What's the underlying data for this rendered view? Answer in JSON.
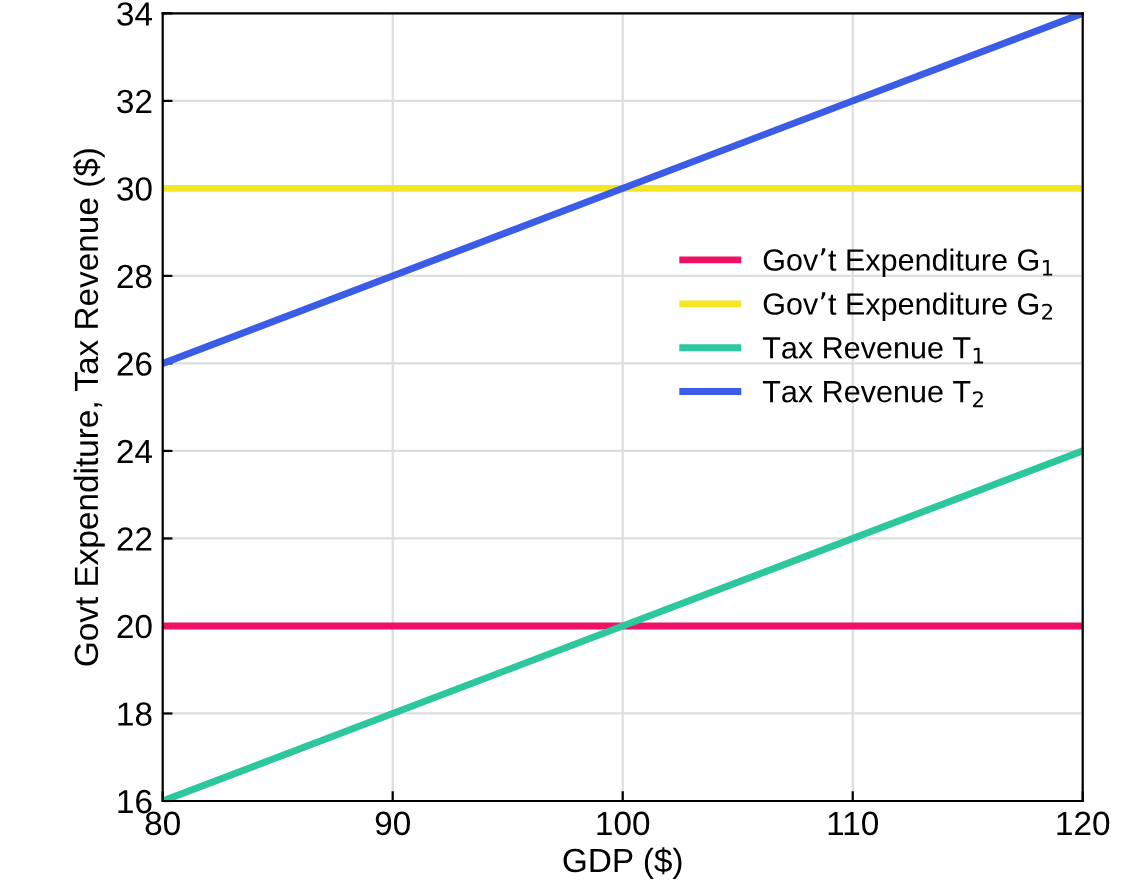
{
  "chart_data": {
    "type": "line",
    "xlabel": "GDP ($)",
    "ylabel": "Govt Expenditure, Tax Revenue ($)",
    "x": [
      80,
      120
    ],
    "xlim": [
      80,
      120
    ],
    "xticks": [
      80,
      90,
      100,
      110,
      120
    ],
    "ylim": [
      16,
      34
    ],
    "yticks": [
      16,
      18,
      20,
      22,
      24,
      26,
      28,
      30,
      32,
      34
    ],
    "grid": true,
    "legend": "right",
    "series": [
      {
        "name": "Gov’t Expenditure G$_{1}$",
        "color": "#ee1166",
        "values": [
          20,
          20
        ]
      },
      {
        "name": "Gov’t Expenditure G$_{2}$",
        "color": "#f5e624",
        "values": [
          30,
          30
        ]
      },
      {
        "name": "Tax Revenue T$_{1}$",
        "color": "#2cc79d",
        "values": [
          16,
          24
        ]
      },
      {
        "name": "Tax Revenue T$_{2}$",
        "color": "#3a5ce6",
        "values": [
          26,
          34
        ]
      }
    ]
  }
}
